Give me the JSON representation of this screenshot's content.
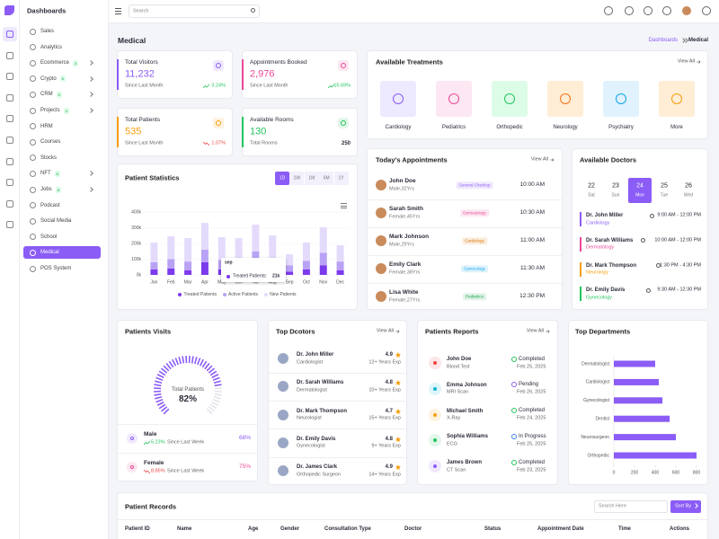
{
  "header": {
    "brand": "Dashboards",
    "search": "Search"
  },
  "sidebar": {
    "items": [
      {
        "label": "Sales"
      },
      {
        "label": "Analytics"
      },
      {
        "label": "Ecommerce",
        "badge": "4",
        "submenu": true
      },
      {
        "label": "Crypto",
        "badge": "6",
        "submenu": true
      },
      {
        "label": "CRM",
        "badge": "5",
        "submenu": true
      },
      {
        "label": "Projects",
        "badge": "4",
        "submenu": true
      },
      {
        "label": "HRM"
      },
      {
        "label": "Courses"
      },
      {
        "label": "Stocks"
      },
      {
        "label": "NFT",
        "badge": "6",
        "submenu": true
      },
      {
        "label": "Jobs",
        "badge": "8",
        "submenu": true
      },
      {
        "label": "Podcast"
      },
      {
        "label": "Social Media"
      },
      {
        "label": "School"
      },
      {
        "label": "Medical",
        "active": true
      },
      {
        "label": "POS System"
      }
    ]
  },
  "page": {
    "title": "Medical",
    "breadcrumb": [
      "Dashboards",
      "Medical"
    ]
  },
  "stats": [
    {
      "label": "Total Visitors",
      "value": "11,232",
      "caption": "Since Last Month",
      "change": "3.24%",
      "trend": "up",
      "color": "#8b5cf6"
    },
    {
      "label": "Appointments Booked",
      "value": "2,976",
      "caption": "Since Last Month",
      "change": "15.69%",
      "trend": "up",
      "color": "#ec4899"
    },
    {
      "label": "Total Patients",
      "value": "535",
      "caption": "Since Last Month",
      "change": "1.07%",
      "trend": "down",
      "color": "#f59e0b"
    },
    {
      "label": "Available Rooms",
      "value": "130",
      "caption": "Total Rooms",
      "extra": "250",
      "color": "#22c55e"
    }
  ],
  "treatments": {
    "title": "Available Treatments",
    "view_all": "View All",
    "items": [
      {
        "label": "Cardiology",
        "color": "#ede9fe",
        "icon_color": "#8b5cf6"
      },
      {
        "label": "Pediatrics",
        "color": "#fce7f3",
        "icon_color": "#ec4899"
      },
      {
        "label": "Orthopedic",
        "color": "#dcfce7",
        "icon_color": "#22c55e"
      },
      {
        "label": "Neurology",
        "color": "#ffedd5",
        "icon_color": "#f97316"
      },
      {
        "label": "Psychiatry",
        "color": "#e0f2fe",
        "icon_color": "#0ea5e9"
      },
      {
        "label": "More",
        "color": "#ffedd5",
        "icon_color": "#f59e0b"
      }
    ]
  },
  "patient_statistics": {
    "title": "Patient Statistics",
    "periods": [
      {
        "label": "1D",
        "active": true
      },
      {
        "label": "1W"
      },
      {
        "label": "1M"
      },
      {
        "label": "6M"
      },
      {
        "label": "1Y"
      }
    ],
    "chart": {
      "type": "bar",
      "stacked": true,
      "grid": true,
      "categories": [
        "Jan",
        "Feb",
        "Mar",
        "Apr",
        "May",
        "Jun",
        "Jul",
        "Aug",
        "Sep",
        "Oct",
        "Nov",
        "Dec"
      ],
      "series": [
        {
          "name": "Treated Patients",
          "color": "#7c3aed",
          "values": [
            35,
            40,
            30,
            80,
            35,
            30,
            60,
            40,
            21,
            35,
            60,
            30
          ]
        },
        {
          "name": "Active Patients",
          "color": "#b9a2f5",
          "values": [
            45,
            60,
            55,
            80,
            60,
            50,
            90,
            70,
            40,
            55,
            80,
            55
          ]
        },
        {
          "name": "New Patients",
          "color": "#e4dbfc",
          "values": [
            126,
            146,
            149,
            171,
            145,
            154,
            170,
            141,
            70,
            116,
            163,
            104
          ]
        }
      ],
      "ylim": [
        0,
        400
      ],
      "yticks": [
        {
          "value": 0,
          "label": "0k"
        },
        {
          "value": 100,
          "label": "100k"
        },
        {
          "value": 200,
          "label": "200k"
        },
        {
          "value": 300,
          "label": "300k"
        },
        {
          "value": 400,
          "label": "400k"
        }
      ],
      "tooltip": {
        "title": "sep",
        "text": "Treated Patients:",
        "value": "21k"
      }
    }
  },
  "appointments": {
    "title": "Today's Appointments",
    "view_all": "View All",
    "rows": [
      {
        "name": "John Doe",
        "detail": "Male,32Yrs",
        "dept": "General Checkup",
        "time": "10:00 AM",
        "color": "#8b5cf6"
      },
      {
        "name": "Sarah Smith",
        "detail": "Female,45Yrs",
        "dept": "Dermatology",
        "time": "10:30 AM",
        "color": "#ec4899"
      },
      {
        "name": "Mark Johnson",
        "detail": "Male,29Yrs",
        "dept": "Cardiology",
        "time": "11:00 AM",
        "color": "#d97706"
      },
      {
        "name": "Emily Clark",
        "detail": "Female,38Yrs",
        "dept": "Gynecology",
        "time": "11:30 AM",
        "color": "#0ea5e9"
      },
      {
        "name": "Lisa White",
        "detail": "Female,27Yrs",
        "dept": "Pediatrics",
        "time": "12:30 PM",
        "color": "#16a34a"
      }
    ]
  },
  "available_doctors": {
    "title": "Available Doctors",
    "days": [
      {
        "date": "22",
        "day": "Sat"
      },
      {
        "date": "23",
        "day": "Sun"
      },
      {
        "date": "24",
        "day": "Mon",
        "active": true
      },
      {
        "date": "25",
        "day": "Tue"
      },
      {
        "date": "26",
        "day": "Wed"
      }
    ],
    "doctors": [
      {
        "name": "Dr. John Miller",
        "dept": "Cardiology",
        "time": "9:00 AM - 12:00 PM",
        "color": "#8b5cf6"
      },
      {
        "name": "Dr. Sarah Williams",
        "dept": "Dermatology",
        "time": "10:00 AM - 12:00 PM",
        "color": "#ec4899"
      },
      {
        "name": "Dr. Mark Thompson",
        "dept": "Neurology",
        "time": "1:30 PM - 4:30 PM",
        "color": "#f59e0b"
      },
      {
        "name": "Dr. Emily Davis",
        "dept": "Gynecology",
        "time": "9:30 AM - 12:30 PM",
        "color": "#22c55e"
      }
    ]
  },
  "patients_visits": {
    "title": "Patients Visits",
    "gauge": {
      "label": "Total Patients",
      "value": 82,
      "value_label": "82%",
      "color": "#8b5cf6"
    },
    "groups": [
      {
        "label": "Male",
        "change": "5.23%",
        "trend": "up",
        "caption": "Since Last Week",
        "share": "68%",
        "color": "#8b5cf6"
      },
      {
        "label": "Female",
        "change": "8.85%",
        "trend": "down",
        "caption": "Since Last Week",
        "share": "75%",
        "color": "#ec4899"
      }
    ]
  },
  "top_doctors": {
    "title": "Top Dcotors",
    "view_all": "View All",
    "doctors": [
      {
        "name": "Dr. John Miller",
        "dept": "Cardiologist",
        "rating": "4.9",
        "exp": "12+ Years Exp"
      },
      {
        "name": "Dr. Sarah Williams",
        "dept": "Dermatologist",
        "rating": "4.8",
        "exp": "10+ Years Exp"
      },
      {
        "name": "Dr. Mark Thompson",
        "dept": "Neurologist",
        "rating": "4.7",
        "exp": "15+ Years Exp"
      },
      {
        "name": "Dr. Emily Davis",
        "dept": "Gynecologist",
        "rating": "4.8",
        "exp": "9+ Years Exp"
      },
      {
        "name": "Dr. James Clark",
        "dept": "Orthopedic Surgeon",
        "rating": "4.9",
        "exp": "14+ Years Exp"
      }
    ]
  },
  "patient_reports": {
    "title": "Patients Reports",
    "view_all": "View All",
    "rows": [
      {
        "name": "John Doe",
        "test": "Blood Test",
        "status": "Completed",
        "date": "Feb 25, 2025",
        "color": "#ef4444",
        "status_color": "#22c55e"
      },
      {
        "name": "Emma Johnson",
        "test": "MRI Scan",
        "status": "Pending",
        "date": "Feb 26, 2025",
        "color": "#06b6d4",
        "status_color": "#8b5cf6"
      },
      {
        "name": "Michael Smith",
        "test": "X-Ray",
        "status": "Completed",
        "date": "Feb 24, 2025",
        "color": "#f59e0b",
        "status_color": "#22c55e"
      },
      {
        "name": "Sophia Williams",
        "test": "ECG",
        "status": "In Progress",
        "date": "Feb 25, 2025",
        "color": "#22c55e",
        "status_color": "#3b82f6"
      },
      {
        "name": "James Brown",
        "test": "CT Scan",
        "status": "Completed",
        "date": "Feb 23, 2025",
        "color": "#8b5cf6",
        "status_color": "#22c55e"
      }
    ]
  },
  "top_departments": {
    "title": "Top Departments",
    "chart": {
      "type": "bar",
      "orientation": "horizontal",
      "categories": [
        "Dermatologist",
        "Cardiologist",
        "Gynecologist",
        "Dentist",
        "Neurosurgeon",
        "Orthopedic"
      ],
      "values": [
        400,
        435,
        470,
        540,
        600,
        800
      ],
      "color": "#8b5cf6",
      "xlim": [
        0,
        800
      ],
      "xticks": [
        0,
        200,
        400,
        600,
        800
      ]
    }
  },
  "patient_records": {
    "title": "Patient Records",
    "search": "Search Here",
    "sort": "Sort By",
    "columns": [
      "Patient ID",
      "Name",
      "Age",
      "Gender",
      "Consultation Type",
      "Doctor",
      "Status",
      "Appointment Date",
      "Time",
      "Actions"
    ]
  }
}
